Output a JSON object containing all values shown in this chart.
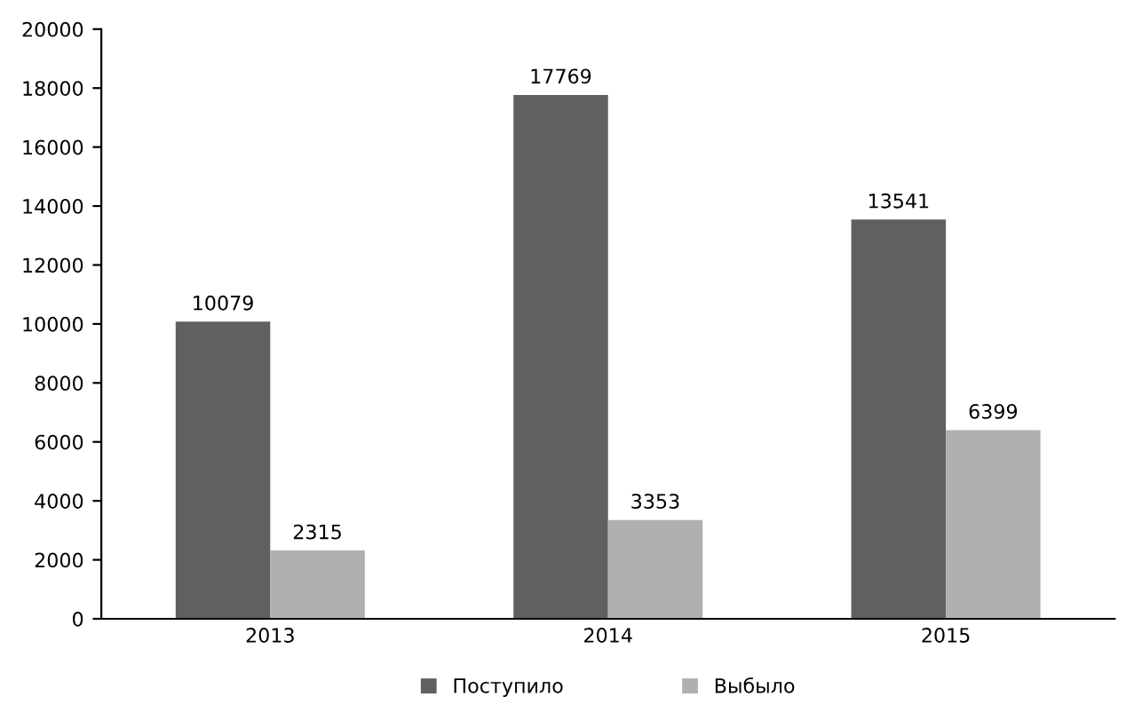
{
  "chart_data": {
    "type": "bar",
    "categories": [
      "2013",
      "2014",
      "2015"
    ],
    "series": [
      {
        "name": "Поступило",
        "color": "#606060",
        "values": [
          10079,
          17769,
          13541
        ]
      },
      {
        "name": "Выбыло",
        "color": "#b0b0b0",
        "values": [
          2315,
          3353,
          6399
        ]
      }
    ],
    "ylim": [
      0,
      20000
    ],
    "yticks": [
      0,
      2000,
      4000,
      6000,
      8000,
      10000,
      12000,
      14000,
      16000,
      18000,
      20000
    ],
    "grid": false,
    "legend": "bottom",
    "data_labels": true
  }
}
